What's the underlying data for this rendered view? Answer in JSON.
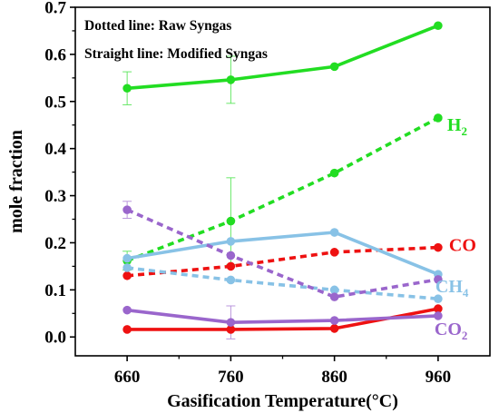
{
  "chart_data": {
    "type": "line",
    "xlabel": "Gasification Temperature(°C)",
    "ylabel": "mole fraction",
    "x": [
      660,
      760,
      860,
      960
    ],
    "xticks": [
      "660",
      "760",
      "860",
      "960"
    ],
    "yticks": [
      "0.0",
      "0.1",
      "0.2",
      "0.3",
      "0.4",
      "0.5",
      "0.6",
      "0.7"
    ],
    "xlim": [
      610,
      1010
    ],
    "ylim": [
      -0.04,
      0.7
    ],
    "annotations": [
      "Dotted line: Raw Syngas",
      "Straight line: Modified Syngas"
    ],
    "series": [
      {
        "name": "H2",
        "style": "solid",
        "color": "#22dd22",
        "values": [
          0.528,
          0.546,
          0.574,
          0.661
        ],
        "error": [
          0.035,
          0.05,
          0.0,
          0.0
        ]
      },
      {
        "name": "H2",
        "style": "dotted",
        "color": "#22dd22",
        "values": [
          0.162,
          0.246,
          0.348,
          0.465
        ],
        "error": [
          0.02,
          0.092,
          0.0,
          0.0
        ]
      },
      {
        "name": "CO",
        "style": "solid",
        "color": "#ee1111",
        "values": [
          0.016,
          0.016,
          0.018,
          0.06
        ],
        "error": [
          0.0,
          0.0,
          0.0,
          0.0
        ]
      },
      {
        "name": "CO",
        "style": "dotted",
        "color": "#ee1111",
        "values": [
          0.13,
          0.15,
          0.18,
          0.19
        ],
        "error": [
          0.0,
          0.0,
          0.0,
          0.0
        ]
      },
      {
        "name": "CH4",
        "style": "solid",
        "color": "#88c2e6",
        "values": [
          0.167,
          0.203,
          0.222,
          0.133
        ],
        "error": [
          0.0,
          0.0,
          0.0,
          0.0
        ]
      },
      {
        "name": "CH4",
        "style": "dotted",
        "color": "#88c2e6",
        "values": [
          0.147,
          0.121,
          0.1,
          0.081
        ],
        "error": [
          0.0,
          0.0,
          0.0,
          0.0
        ]
      },
      {
        "name": "CO2",
        "style": "solid",
        "color": "#9a66cc",
        "values": [
          0.057,
          0.031,
          0.035,
          0.045
        ],
        "error": [
          0.0,
          0.035,
          0.0,
          0.0
        ]
      },
      {
        "name": "CO2",
        "style": "dotted",
        "color": "#9a66cc",
        "values": [
          0.27,
          0.173,
          0.085,
          0.122
        ],
        "error": [
          0.018,
          0.0,
          0.0,
          0.0
        ]
      }
    ],
    "labels": [
      {
        "main": "H",
        "sub": "2",
        "color": "#22dd22",
        "anchor_series": 1
      },
      {
        "main": "CO",
        "sub": "",
        "color": "#ee1111",
        "anchor_series": 3
      },
      {
        "main": "CH",
        "sub": "4",
        "color": "#88c2e6",
        "anchor_series": 4
      },
      {
        "main": "CO",
        "sub": "2",
        "color": "#9a66cc",
        "anchor_series": 6
      }
    ]
  }
}
